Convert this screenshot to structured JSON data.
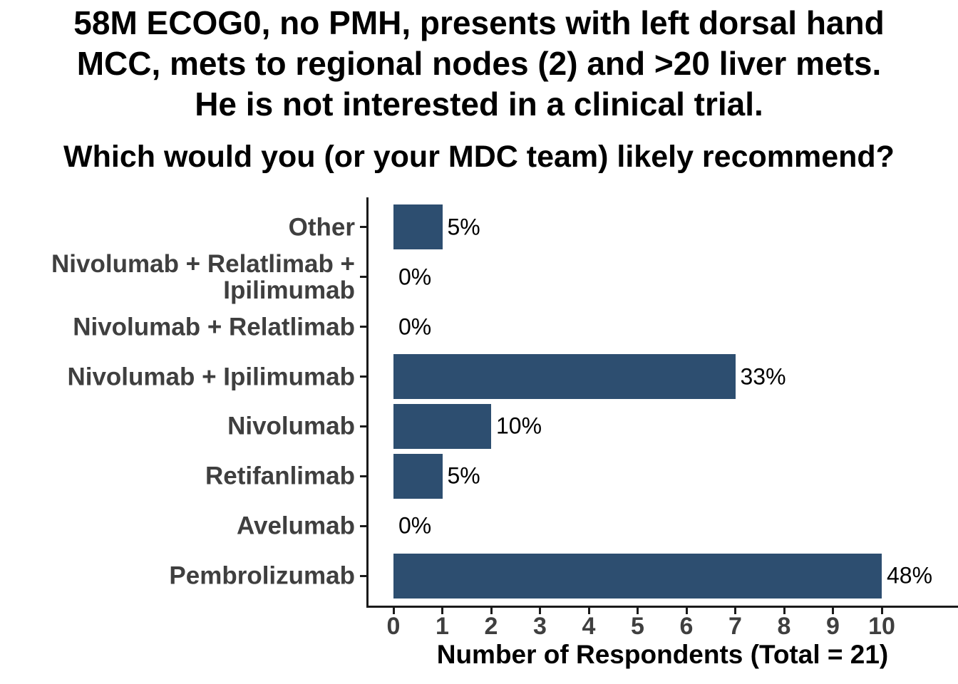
{
  "page": {
    "background": "#FFFFFF"
  },
  "chart_data": {
    "type": "bar",
    "orientation": "horizontal",
    "title": "58M ECOG0, no PMH, presents with left dorsal hand MCC, mets to regional nodes (2) and >20 liver mets. He is not interested in a clinical trial.",
    "title_lines": [
      "58M ECOG0, no PMH, presents with left dorsal hand",
      "MCC, mets to regional nodes (2) and >20 liver mets.",
      "He is not interested in a clinical trial."
    ],
    "subtitle": "Which would you (or your MDC team) likely recommend?",
    "categories": [
      "Other",
      "Nivolumab + Relatlimab + Ipilimumab",
      "Nivolumab + Relatlimab",
      "Nivolumab + Ipilimumab",
      "Nivolumab",
      "Retifanlimab",
      "Avelumab",
      "Pembrolizumab"
    ],
    "category_label_lines": [
      [
        "Other"
      ],
      [
        "Nivolumab + Relatlimab +",
        "Ipilimumab"
      ],
      [
        "Nivolumab + Relatlimab"
      ],
      [
        "Nivolumab + Ipilimumab"
      ],
      [
        "Nivolumab"
      ],
      [
        "Retifanlimab"
      ],
      [
        "Avelumab"
      ],
      [
        "Pembrolizumab"
      ]
    ],
    "values": [
      1,
      0,
      0,
      7,
      2,
      1,
      0,
      10
    ],
    "value_labels": [
      "5%",
      "0%",
      "0%",
      "33%",
      "10%",
      "5%",
      "0%",
      "48%"
    ],
    "total_respondents": 21,
    "xlabel": "Number of Respondents (Total = 21)",
    "x_ticks": [
      "0",
      "1",
      "2",
      "3",
      "4",
      "5",
      "6",
      "7",
      "8",
      "9",
      "10"
    ],
    "xlim": [
      0,
      11.6
    ],
    "grid": false,
    "legend": false,
    "colors": {
      "bar": "#2D4E70",
      "axis_line": "#1A1A1A",
      "axis_text": "#3F3F3F",
      "value_label": "#000000",
      "title": "#000000"
    }
  }
}
